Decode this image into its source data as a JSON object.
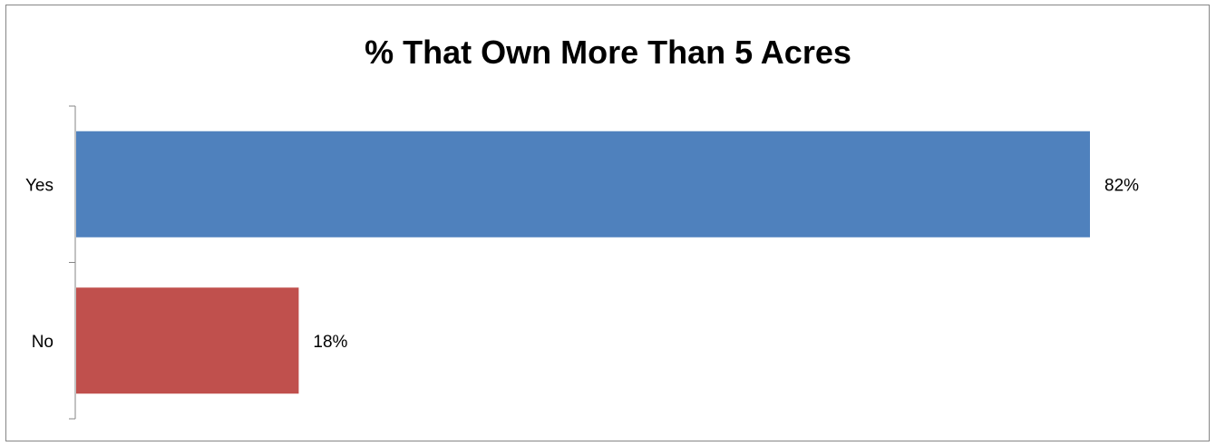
{
  "chart_data": {
    "type": "bar",
    "orientation": "horizontal",
    "title": "% That Own More Than 5 Acres",
    "categories": [
      "Yes",
      "No"
    ],
    "values": [
      82,
      18
    ],
    "data_labels": [
      "82%",
      "18%"
    ],
    "colors": [
      "#4F81BD",
      "#C0504D"
    ],
    "xlim": [
      0,
      82
    ],
    "grid": false,
    "legend": "none",
    "xlabel": "",
    "ylabel": ""
  }
}
